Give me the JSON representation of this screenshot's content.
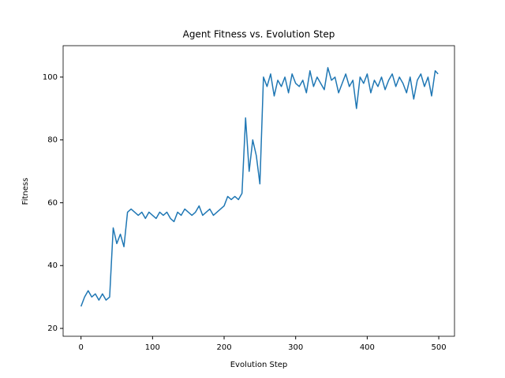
{
  "chart_data": {
    "type": "line",
    "title": "Agent Fitness vs. Evolution Step",
    "x_label": "Evolution Step",
    "y_label": "Fitness",
    "x": [
      0,
      5,
      10,
      15,
      20,
      25,
      30,
      35,
      40,
      45,
      50,
      55,
      60,
      65,
      70,
      75,
      80,
      85,
      90,
      95,
      100,
      105,
      110,
      115,
      120,
      125,
      130,
      135,
      140,
      145,
      150,
      155,
      160,
      165,
      170,
      175,
      180,
      185,
      190,
      195,
      200,
      205,
      210,
      215,
      220,
      225,
      230,
      235,
      240,
      245,
      250,
      255,
      260,
      265,
      270,
      275,
      280,
      285,
      290,
      295,
      300,
      305,
      310,
      315,
      320,
      325,
      330,
      335,
      340,
      345,
      350,
      355,
      360,
      365,
      370,
      375,
      380,
      385,
      390,
      395,
      400,
      405,
      410,
      415,
      420,
      425,
      430,
      435,
      440,
      445,
      450,
      455,
      460,
      465,
      470,
      475,
      480,
      485,
      490,
      495,
      499
    ],
    "series": [
      {
        "color": "#1f77b4",
        "values": [
          27,
          30,
          32,
          30,
          31,
          29,
          31,
          29,
          30,
          52,
          47,
          50,
          46,
          57,
          58,
          57,
          56,
          57,
          55,
          57,
          56,
          55,
          57,
          56,
          57,
          55,
          54,
          57,
          56,
          58,
          57,
          56,
          57,
          59,
          56,
          57,
          58,
          56,
          57,
          58,
          59,
          62,
          61,
          62,
          61,
          63,
          87,
          70,
          80,
          75,
          66,
          100,
          97,
          101,
          94,
          99,
          97,
          100,
          95,
          101,
          98,
          97,
          99,
          95,
          102,
          97,
          100,
          98,
          96,
          103,
          99,
          100,
          95,
          98,
          101,
          97,
          99,
          90,
          100,
          98,
          101,
          95,
          99,
          97,
          100,
          96,
          99,
          101,
          97,
          100,
          98,
          95,
          100,
          93,
          99,
          101,
          97,
          100,
          94,
          102,
          101
        ]
      }
    ],
    "xlim": [
      -25,
      522
    ],
    "ylim": [
      17.5,
      110
    ],
    "xticks": [
      0,
      100,
      200,
      300,
      400,
      500
    ],
    "yticks": [
      20,
      40,
      60,
      80,
      100
    ]
  }
}
